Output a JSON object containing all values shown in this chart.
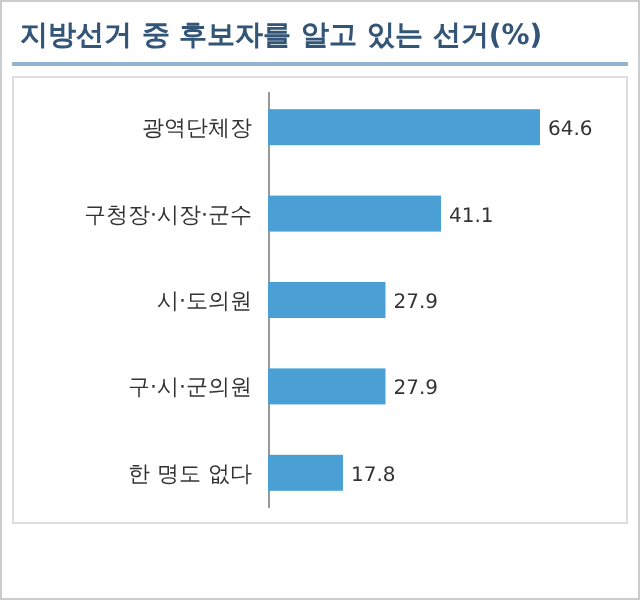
{
  "chart_data": {
    "type": "bar",
    "orientation": "horizontal",
    "title": "지방선거 중 후보자를 알고 있는 선거(%)",
    "categories": [
      "광역단체장",
      "구청장·시장·군수",
      "시·도의원",
      "구·시·군의원",
      "한 명도 없다"
    ],
    "values": [
      64.6,
      41.1,
      27.9,
      27.9,
      17.8
    ],
    "color": "#4a9fd5",
    "data_labels": true
  }
}
